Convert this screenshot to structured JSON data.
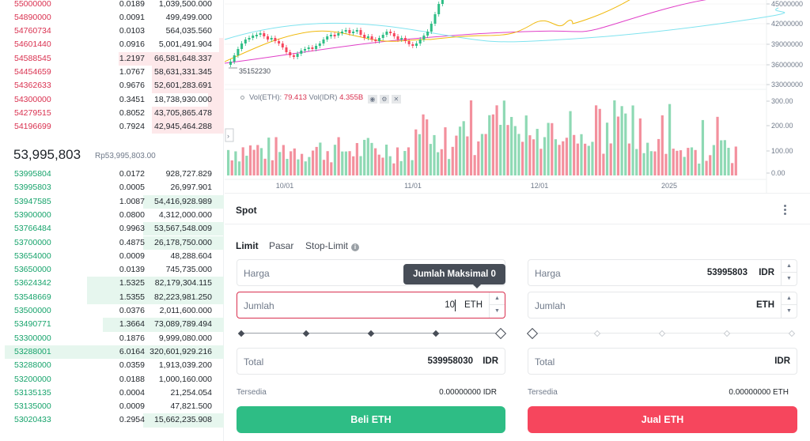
{
  "order_book": {
    "asks": [
      {
        "price": "55000000",
        "amount": "0.0189",
        "total": "1,039,500.000",
        "depth": 0
      },
      {
        "price": "54890000",
        "amount": "0.0091",
        "total": "499,499.000",
        "depth": 0
      },
      {
        "price": "54760734",
        "amount": "0.0103",
        "total": "564,035.560",
        "depth": 0
      },
      {
        "price": "54601440",
        "amount": "0.0916",
        "total": "5,001,491.904",
        "depth": 0.02
      },
      {
        "price": "54588545",
        "amount": "1.2197",
        "total": "66,581,648.337",
        "depth": 0.47
      },
      {
        "price": "54454659",
        "amount": "1.0767",
        "total": "58,631,331.345",
        "depth": 0.32
      },
      {
        "price": "54362633",
        "amount": "0.9676",
        "total": "52,601,283.691",
        "depth": 0.32
      },
      {
        "price": "54300000",
        "amount": "0.3451",
        "total": "18,738,930.000",
        "depth": 0.07
      },
      {
        "price": "54279515",
        "amount": "0.8052",
        "total": "43,705,865.478",
        "depth": 0.32
      },
      {
        "price": "54196699",
        "amount": "0.7924",
        "total": "42,945,464.288",
        "depth": 0.32
      }
    ],
    "last_price": "53,995,803",
    "last_price_fiat": "Rp53,995,803.00",
    "bids": [
      {
        "price": "53995804",
        "amount": "0.0172",
        "total": "928,727.829",
        "depth": 0
      },
      {
        "price": "53995803",
        "amount": "0.0005",
        "total": "26,997.901",
        "depth": 0
      },
      {
        "price": "53947585",
        "amount": "1.0087",
        "total": "54,416,928.989",
        "depth": 0.36
      },
      {
        "price": "53900000",
        "amount": "0.0800",
        "total": "4,312,000.000",
        "depth": 0
      },
      {
        "price": "53766484",
        "amount": "0.9963",
        "total": "53,567,548.009",
        "depth": 0.36
      },
      {
        "price": "53700000",
        "amount": "0.4875",
        "total": "26,178,750.000",
        "depth": 0.36
      },
      {
        "price": "53654000",
        "amount": "0.0009",
        "total": "48,288.604",
        "depth": 0
      },
      {
        "price": "53650000",
        "amount": "0.0139",
        "total": "745,735.000",
        "depth": 0
      },
      {
        "price": "53624342",
        "amount": "1.5325",
        "total": "82,179,304.115",
        "depth": 0.61
      },
      {
        "price": "53548669",
        "amount": "1.5355",
        "total": "82,223,981.250",
        "depth": 0.61
      },
      {
        "price": "53500000",
        "amount": "0.0376",
        "total": "2,011,600.000",
        "depth": 0
      },
      {
        "price": "53490771",
        "amount": "1.3664",
        "total": "73,089,789.494",
        "depth": 0.54
      },
      {
        "price": "53300000",
        "amount": "0.1876",
        "total": "9,999,080.000",
        "depth": 0
      },
      {
        "price": "53288001",
        "amount": "6.0164",
        "total": "320,601,929.216",
        "depth": 0.98
      },
      {
        "price": "53288000",
        "amount": "0.0359",
        "total": "1,913,039.200",
        "depth": 0
      },
      {
        "price": "53200000",
        "amount": "0.0188",
        "total": "1,000,160.000",
        "depth": 0
      },
      {
        "price": "53135135",
        "amount": "0.0004",
        "total": "21,254.054",
        "depth": 0
      },
      {
        "price": "53135000",
        "amount": "0.0009",
        "total": "47,821.500",
        "depth": 0
      },
      {
        "price": "53020433",
        "amount": "0.2954",
        "total": "15,662,235.908",
        "depth": 0.36
      }
    ]
  },
  "chart": {
    "price_axis": [
      "45000000",
      "42000000",
      "39000000",
      "36000000",
      "33000000"
    ],
    "low_marker": "35152230",
    "vol_legend": {
      "vol_base_label": "Vol(ETH):",
      "vol_base": "79.413",
      "vol_quote_label": "Vol(IDR)",
      "vol_quote": "4.355B"
    },
    "vol_axis": [
      "300.00",
      "200.00",
      "100.00",
      "0.00"
    ],
    "date_axis": [
      "10/01",
      "11/01",
      "12/01",
      "2025"
    ],
    "colors": {
      "up": "#2ebd85",
      "down": "#f6465d"
    }
  },
  "trade": {
    "tab": "Spot",
    "order_types": [
      "Limit",
      "Pasar",
      "Stop-Limit"
    ],
    "buy": {
      "price_label": "Harga",
      "amount_label": "Jumlah",
      "amount_value": "10",
      "amount_unit": "ETH",
      "total_label": "Total",
      "total_value": "539958030",
      "total_unit": "IDR",
      "avail_label": "Tersedia",
      "avail_value": "0.00000000 IDR",
      "button": "Beli ETH",
      "tooltip": "Jumlah Maksimal 0"
    },
    "sell": {
      "price_label": "Harga",
      "price_value": "53995803",
      "price_unit": "IDR",
      "amount_label": "Jumlah",
      "amount_unit": "ETH",
      "total_label": "Total",
      "total_unit": "IDR",
      "avail_label": "Tersedia",
      "avail_value": "0.00000000 ETH",
      "button": "Jual ETH"
    }
  }
}
